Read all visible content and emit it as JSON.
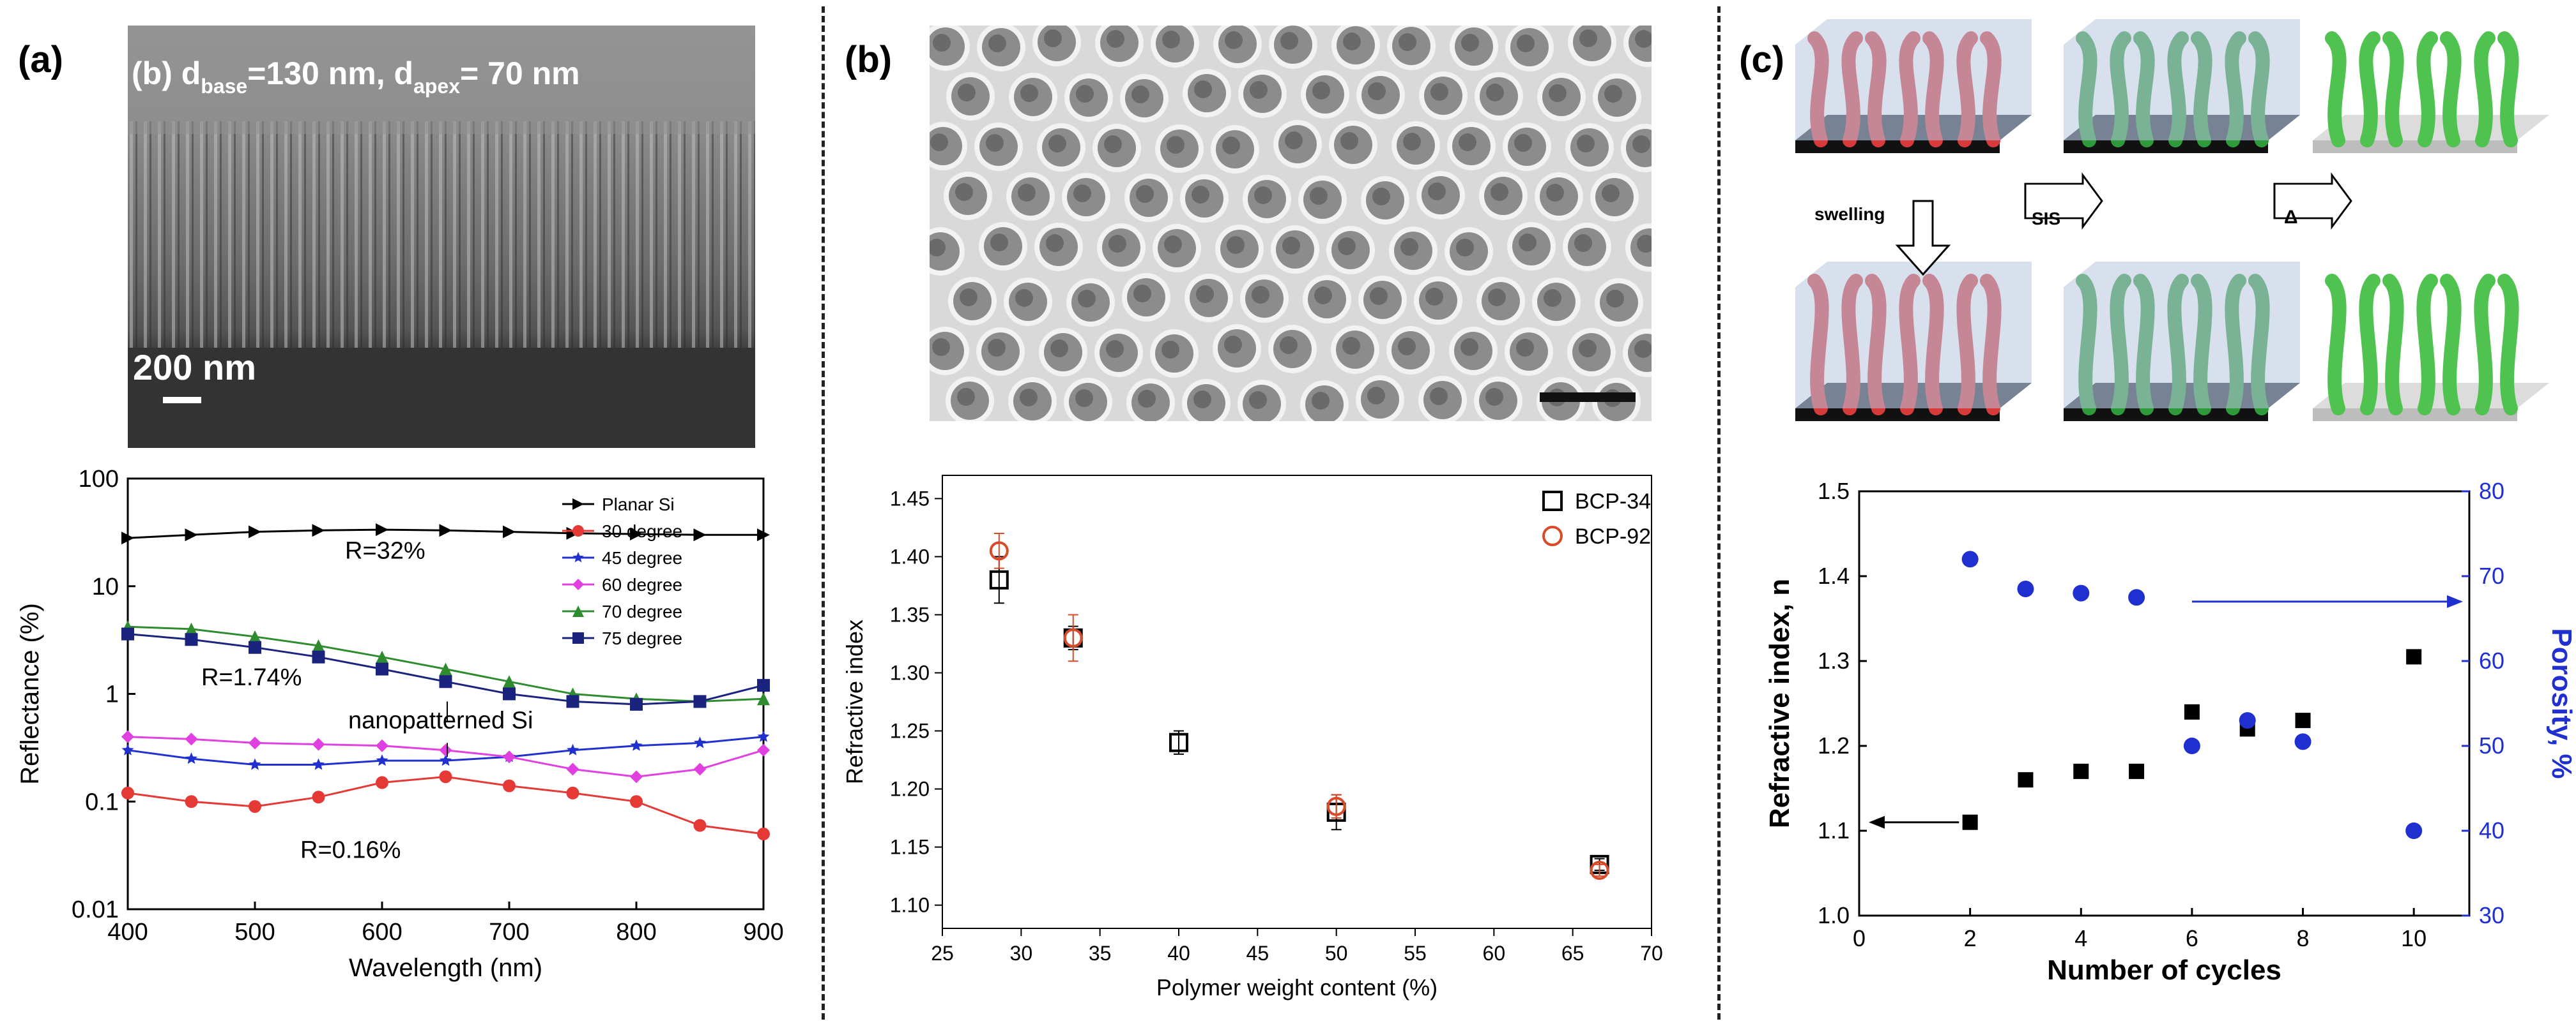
{
  "panels": {
    "a": {
      "label": "(a)"
    },
    "b": {
      "label": "(b)"
    },
    "c": {
      "label": "(c)"
    }
  },
  "sem_a": {
    "caption_prefix": "(b) d",
    "sub_base": "base",
    "caption_mid": "=130 nm, d",
    "sub_apex": "apex",
    "caption_end": "= 70 nm",
    "scale_label": "200 nm"
  },
  "schematic_c": {
    "arrow_swelling": "swelling",
    "arrow_sis": "SIS",
    "arrow_delta": "Δ"
  },
  "chart_data": [
    {
      "id": "a",
      "type": "line",
      "xlabel": "Wavelength (nm)",
      "ylabel": "Reflectance (%)",
      "xlim": [
        400,
        900
      ],
      "ylim": [
        0.01,
        100
      ],
      "yscale": "log",
      "x_ticks": [
        "400",
        "500",
        "600",
        "700",
        "800",
        "900"
      ],
      "y_ticks": [
        "0.01",
        "0.1",
        "1",
        "10",
        "100"
      ],
      "legend_position": "right",
      "annotations": [
        "R=32%",
        "R=1.74%",
        "nanopatterned Si",
        "R=0.16%"
      ],
      "series": [
        {
          "name": "Planar Si",
          "color": "#000000",
          "marker": "triangle-right",
          "x": [
            400,
            450,
            500,
            550,
            600,
            650,
            700,
            750,
            800,
            850,
            900
          ],
          "y": [
            28,
            30,
            32,
            33,
            33.5,
            33,
            32,
            31,
            30.5,
            30,
            30
          ]
        },
        {
          "name": "30 degree",
          "color": "#e53935",
          "marker": "circle",
          "x": [
            400,
            450,
            500,
            550,
            600,
            650,
            700,
            750,
            800,
            850,
            900
          ],
          "y": [
            0.12,
            0.1,
            0.09,
            0.11,
            0.15,
            0.17,
            0.14,
            0.12,
            0.1,
            0.06,
            0.05
          ]
        },
        {
          "name": "45 degree",
          "color": "#2030d0",
          "marker": "star",
          "x": [
            400,
            450,
            500,
            550,
            600,
            650,
            700,
            750,
            800,
            850,
            900
          ],
          "y": [
            0.3,
            0.25,
            0.22,
            0.22,
            0.24,
            0.24,
            0.26,
            0.3,
            0.33,
            0.35,
            0.4
          ]
        },
        {
          "name": "60 degree",
          "color": "#e040e0",
          "marker": "diamond",
          "x": [
            400,
            450,
            500,
            550,
            600,
            650,
            700,
            750,
            800,
            850,
            900
          ],
          "y": [
            0.4,
            0.38,
            0.35,
            0.34,
            0.33,
            0.3,
            0.26,
            0.2,
            0.17,
            0.2,
            0.3
          ]
        },
        {
          "name": "70 degree",
          "color": "#2e8b2e",
          "marker": "triangle-up",
          "x": [
            400,
            450,
            500,
            550,
            600,
            650,
            700,
            750,
            800,
            850,
            900
          ],
          "y": [
            4.2,
            4.0,
            3.4,
            2.8,
            2.2,
            1.7,
            1.3,
            1.0,
            0.9,
            0.85,
            0.9
          ]
        },
        {
          "name": "75 degree",
          "color": "#1a237e",
          "marker": "square",
          "x": [
            400,
            450,
            500,
            550,
            600,
            650,
            700,
            750,
            800,
            850,
            900
          ],
          "y": [
            3.6,
            3.2,
            2.7,
            2.2,
            1.7,
            1.3,
            1.0,
            0.85,
            0.8,
            0.85,
            1.2
          ]
        }
      ]
    },
    {
      "id": "b",
      "type": "scatter",
      "xlabel": "Polymer weight content (%)",
      "ylabel": "Refractive index",
      "xlim": [
        25,
        70
      ],
      "ylim": [
        1.08,
        1.47
      ],
      "x_ticks": [
        "25",
        "30",
        "35",
        "40",
        "45",
        "50",
        "55",
        "60",
        "65",
        "70"
      ],
      "y_ticks": [
        "1.10",
        "1.15",
        "1.20",
        "1.25",
        "1.30",
        "1.35",
        "1.40",
        "1.45"
      ],
      "legend_position": "top-right",
      "series": [
        {
          "name": "BCP-34",
          "color": "#000000",
          "marker": "open-square",
          "x": [
            28.6,
            33.3,
            40,
            50,
            66.7
          ],
          "y": [
            1.38,
            1.33,
            1.24,
            1.18,
            1.135
          ],
          "err": [
            0.02,
            0.01,
            0.01,
            0.015,
            0.005
          ]
        },
        {
          "name": "BCP-92",
          "color": "#d84a2a",
          "marker": "open-circle",
          "x": [
            28.6,
            33.3,
            50,
            66.7
          ],
          "y": [
            1.405,
            1.33,
            1.185,
            1.13
          ],
          "err": [
            0.015,
            0.02,
            0.01,
            0.005
          ]
        }
      ]
    },
    {
      "id": "c",
      "type": "scatter",
      "xlabel": "Number of cycles",
      "ylabel": "Refractive index, n",
      "y2label": "Porosity, %",
      "xlim": [
        0,
        11
      ],
      "ylim": [
        1.0,
        1.5
      ],
      "y2lim": [
        30,
        80
      ],
      "x_ticks": [
        "0",
        "2",
        "4",
        "6",
        "8",
        "10"
      ],
      "y_ticks": [
        "1.0",
        "1.1",
        "1.2",
        "1.3",
        "1.4",
        "1.5"
      ],
      "y2_ticks": [
        "30",
        "40",
        "50",
        "60",
        "70",
        "80"
      ],
      "series": [
        {
          "name": "Refractive index",
          "axis": "left",
          "color": "#000000",
          "marker": "square",
          "x": [
            2,
            3,
            4,
            5,
            6,
            7,
            8,
            10
          ],
          "y": [
            1.11,
            1.16,
            1.17,
            1.17,
            1.24,
            1.22,
            1.23,
            1.305
          ]
        },
        {
          "name": "Porosity",
          "axis": "right",
          "color": "#1f2fd0",
          "marker": "circle",
          "x": [
            2,
            3,
            4,
            5,
            6,
            7,
            8,
            10
          ],
          "y": [
            72,
            68.5,
            68,
            67.5,
            50,
            53,
            50.5,
            40
          ]
        }
      ]
    }
  ]
}
